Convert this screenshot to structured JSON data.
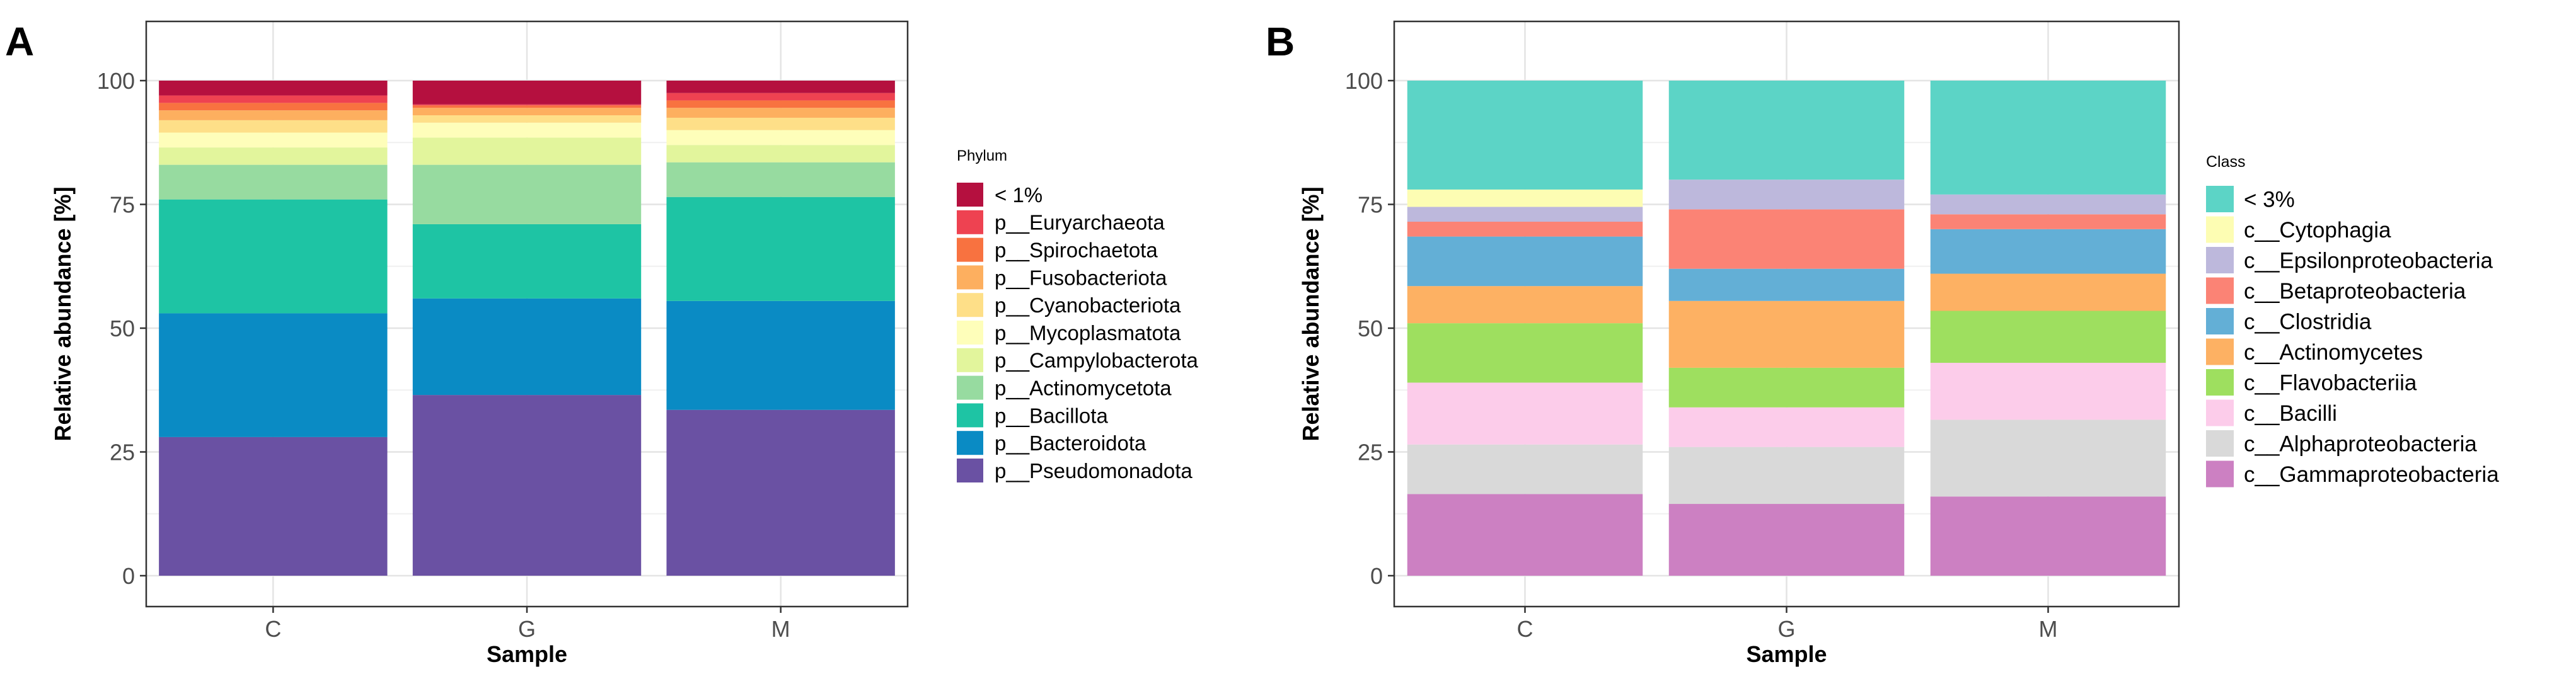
{
  "panels": [
    {
      "letter": "A"
    },
    {
      "letter": "B"
    }
  ],
  "chart_data": [
    {
      "type": "bar",
      "stacked": true,
      "xlabel": "Sample",
      "ylabel": "Relative abundance [%]",
      "ylim": [
        0,
        100
      ],
      "yticks": [
        0,
        25,
        50,
        75,
        100
      ],
      "grid": true,
      "legend_title": "Phylum",
      "legend_position": "right",
      "categories": [
        "C",
        "G",
        "M"
      ],
      "series": [
        {
          "name": "p__Pseudomonadota",
          "color": "#6a51a3",
          "values": [
            28,
            36.5,
            33.5
          ]
        },
        {
          "name": "p__Bacteroidota",
          "color": "#0a8bc4",
          "values": [
            25,
            19.5,
            22
          ]
        },
        {
          "name": "p__Bacillota",
          "color": "#1ec4a4",
          "values": [
            23,
            15,
            21
          ]
        },
        {
          "name": "p__Actinomycetota",
          "color": "#97dba0",
          "values": [
            7,
            12,
            7
          ]
        },
        {
          "name": "p__Campylobacterota",
          "color": "#e2f59c",
          "values": [
            3.5,
            5.5,
            3.5
          ]
        },
        {
          "name": "p__Mycoplasmatota",
          "color": "#fefeba",
          "values": [
            3,
            3,
            3
          ]
        },
        {
          "name": "p__Cyanobacteriota",
          "color": "#fedf88",
          "values": [
            2.5,
            1.5,
            2.5
          ]
        },
        {
          "name": "p__Fusobacteriota",
          "color": "#fdaf5f",
          "values": [
            2,
            1.5,
            2
          ]
        },
        {
          "name": "p__Spirochaetota",
          "color": "#f87240",
          "values": [
            1.5,
            0.5,
            1.5
          ]
        },
        {
          "name": "p__Euryarchaeota",
          "color": "#ee4251",
          "values": [
            1.5,
            0.2,
            1.5
          ]
        },
        {
          "name": "< 1%",
          "color": "#b5103f",
          "values": [
            3,
            4.8,
            2.5
          ]
        }
      ]
    },
    {
      "type": "bar",
      "stacked": true,
      "xlabel": "Sample",
      "ylabel": "Relative abundance [%]",
      "ylim": [
        0,
        100
      ],
      "yticks": [
        0,
        25,
        50,
        75,
        100
      ],
      "grid": true,
      "legend_title": "Class",
      "legend_position": "right",
      "categories": [
        "C",
        "G",
        "M"
      ],
      "series": [
        {
          "name": "c__Gammaproteobacteria",
          "color": "#cc80c2",
          "values": [
            16.5,
            14.5,
            16
          ]
        },
        {
          "name": "c__Alphaproteobacteria",
          "color": "#d9d9d9",
          "values": [
            10,
            11.5,
            15.5
          ]
        },
        {
          "name": "c__Bacilli",
          "color": "#fcccea",
          "values": [
            12.5,
            8,
            11.5
          ]
        },
        {
          "name": "c__Flavobacteriia",
          "color": "#9edf5f",
          "values": [
            12,
            8,
            10.5
          ]
        },
        {
          "name": "c__Actinomycetes",
          "color": "#fdb163",
          "values": [
            7.5,
            13.5,
            7.5
          ]
        },
        {
          "name": "c__Clostridia",
          "color": "#63afd6",
          "values": [
            10,
            6.5,
            9
          ]
        },
        {
          "name": "c__Betaproteobacteria",
          "color": "#fb8375",
          "values": [
            3,
            12,
            3
          ]
        },
        {
          "name": "c__Epsilonproteobacteria",
          "color": "#bdb8dc",
          "values": [
            3,
            6,
            4
          ]
        },
        {
          "name": "c__Cytophagia",
          "color": "#fdfdb3",
          "values": [
            3.5,
            0,
            0
          ]
        },
        {
          "name": "< 3%",
          "color": "#5cd4c6",
          "values": [
            22,
            20,
            23
          ]
        }
      ]
    }
  ]
}
